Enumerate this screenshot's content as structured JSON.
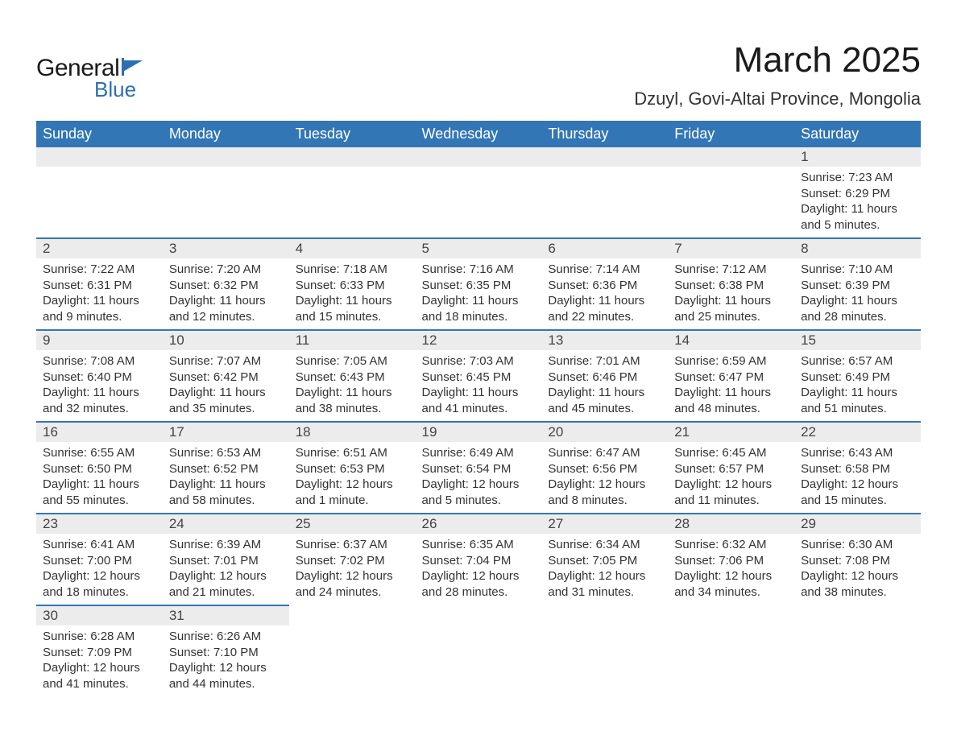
{
  "logo": {
    "text1": "General",
    "text2": "Blue",
    "flag_color": "#2d6fb0"
  },
  "title": "March 2025",
  "location": "Dzuyl, Govi-Altai Province, Mongolia",
  "colors": {
    "header_bg": "#3376b5",
    "header_text": "#ffffff",
    "daynum_bg": "#ececec",
    "row_border": "#3376b5",
    "text": "#333333",
    "title_text": "#1a1a1a"
  },
  "fonts": {
    "title_size_pt": 33,
    "location_size_pt": 17,
    "header_size_pt": 14,
    "daynum_size_pt": 13,
    "body_size_pt": 11
  },
  "weekdays": [
    "Sunday",
    "Monday",
    "Tuesday",
    "Wednesday",
    "Thursday",
    "Friday",
    "Saturday"
  ],
  "weeks": [
    [
      {
        "n": "",
        "sr": "",
        "ss": "",
        "dl": ""
      },
      {
        "n": "",
        "sr": "",
        "ss": "",
        "dl": ""
      },
      {
        "n": "",
        "sr": "",
        "ss": "",
        "dl": ""
      },
      {
        "n": "",
        "sr": "",
        "ss": "",
        "dl": ""
      },
      {
        "n": "",
        "sr": "",
        "ss": "",
        "dl": ""
      },
      {
        "n": "",
        "sr": "",
        "ss": "",
        "dl": ""
      },
      {
        "n": "1",
        "sr": "Sunrise: 7:23 AM",
        "ss": "Sunset: 6:29 PM",
        "dl": "Daylight: 11 hours and 5 minutes."
      }
    ],
    [
      {
        "n": "2",
        "sr": "Sunrise: 7:22 AM",
        "ss": "Sunset: 6:31 PM",
        "dl": "Daylight: 11 hours and 9 minutes."
      },
      {
        "n": "3",
        "sr": "Sunrise: 7:20 AM",
        "ss": "Sunset: 6:32 PM",
        "dl": "Daylight: 11 hours and 12 minutes."
      },
      {
        "n": "4",
        "sr": "Sunrise: 7:18 AM",
        "ss": "Sunset: 6:33 PM",
        "dl": "Daylight: 11 hours and 15 minutes."
      },
      {
        "n": "5",
        "sr": "Sunrise: 7:16 AM",
        "ss": "Sunset: 6:35 PM",
        "dl": "Daylight: 11 hours and 18 minutes."
      },
      {
        "n": "6",
        "sr": "Sunrise: 7:14 AM",
        "ss": "Sunset: 6:36 PM",
        "dl": "Daylight: 11 hours and 22 minutes."
      },
      {
        "n": "7",
        "sr": "Sunrise: 7:12 AM",
        "ss": "Sunset: 6:38 PM",
        "dl": "Daylight: 11 hours and 25 minutes."
      },
      {
        "n": "8",
        "sr": "Sunrise: 7:10 AM",
        "ss": "Sunset: 6:39 PM",
        "dl": "Daylight: 11 hours and 28 minutes."
      }
    ],
    [
      {
        "n": "9",
        "sr": "Sunrise: 7:08 AM",
        "ss": "Sunset: 6:40 PM",
        "dl": "Daylight: 11 hours and 32 minutes."
      },
      {
        "n": "10",
        "sr": "Sunrise: 7:07 AM",
        "ss": "Sunset: 6:42 PM",
        "dl": "Daylight: 11 hours and 35 minutes."
      },
      {
        "n": "11",
        "sr": "Sunrise: 7:05 AM",
        "ss": "Sunset: 6:43 PM",
        "dl": "Daylight: 11 hours and 38 minutes."
      },
      {
        "n": "12",
        "sr": "Sunrise: 7:03 AM",
        "ss": "Sunset: 6:45 PM",
        "dl": "Daylight: 11 hours and 41 minutes."
      },
      {
        "n": "13",
        "sr": "Sunrise: 7:01 AM",
        "ss": "Sunset: 6:46 PM",
        "dl": "Daylight: 11 hours and 45 minutes."
      },
      {
        "n": "14",
        "sr": "Sunrise: 6:59 AM",
        "ss": "Sunset: 6:47 PM",
        "dl": "Daylight: 11 hours and 48 minutes."
      },
      {
        "n": "15",
        "sr": "Sunrise: 6:57 AM",
        "ss": "Sunset: 6:49 PM",
        "dl": "Daylight: 11 hours and 51 minutes."
      }
    ],
    [
      {
        "n": "16",
        "sr": "Sunrise: 6:55 AM",
        "ss": "Sunset: 6:50 PM",
        "dl": "Daylight: 11 hours and 55 minutes."
      },
      {
        "n": "17",
        "sr": "Sunrise: 6:53 AM",
        "ss": "Sunset: 6:52 PM",
        "dl": "Daylight: 11 hours and 58 minutes."
      },
      {
        "n": "18",
        "sr": "Sunrise: 6:51 AM",
        "ss": "Sunset: 6:53 PM",
        "dl": "Daylight: 12 hours and 1 minute."
      },
      {
        "n": "19",
        "sr": "Sunrise: 6:49 AM",
        "ss": "Sunset: 6:54 PM",
        "dl": "Daylight: 12 hours and 5 minutes."
      },
      {
        "n": "20",
        "sr": "Sunrise: 6:47 AM",
        "ss": "Sunset: 6:56 PM",
        "dl": "Daylight: 12 hours and 8 minutes."
      },
      {
        "n": "21",
        "sr": "Sunrise: 6:45 AM",
        "ss": "Sunset: 6:57 PM",
        "dl": "Daylight: 12 hours and 11 minutes."
      },
      {
        "n": "22",
        "sr": "Sunrise: 6:43 AM",
        "ss": "Sunset: 6:58 PM",
        "dl": "Daylight: 12 hours and 15 minutes."
      }
    ],
    [
      {
        "n": "23",
        "sr": "Sunrise: 6:41 AM",
        "ss": "Sunset: 7:00 PM",
        "dl": "Daylight: 12 hours and 18 minutes."
      },
      {
        "n": "24",
        "sr": "Sunrise: 6:39 AM",
        "ss": "Sunset: 7:01 PM",
        "dl": "Daylight: 12 hours and 21 minutes."
      },
      {
        "n": "25",
        "sr": "Sunrise: 6:37 AM",
        "ss": "Sunset: 7:02 PM",
        "dl": "Daylight: 12 hours and 24 minutes."
      },
      {
        "n": "26",
        "sr": "Sunrise: 6:35 AM",
        "ss": "Sunset: 7:04 PM",
        "dl": "Daylight: 12 hours and 28 minutes."
      },
      {
        "n": "27",
        "sr": "Sunrise: 6:34 AM",
        "ss": "Sunset: 7:05 PM",
        "dl": "Daylight: 12 hours and 31 minutes."
      },
      {
        "n": "28",
        "sr": "Sunrise: 6:32 AM",
        "ss": "Sunset: 7:06 PM",
        "dl": "Daylight: 12 hours and 34 minutes."
      },
      {
        "n": "29",
        "sr": "Sunrise: 6:30 AM",
        "ss": "Sunset: 7:08 PM",
        "dl": "Daylight: 12 hours and 38 minutes."
      }
    ],
    [
      {
        "n": "30",
        "sr": "Sunrise: 6:28 AM",
        "ss": "Sunset: 7:09 PM",
        "dl": "Daylight: 12 hours and 41 minutes."
      },
      {
        "n": "31",
        "sr": "Sunrise: 6:26 AM",
        "ss": "Sunset: 7:10 PM",
        "dl": "Daylight: 12 hours and 44 minutes."
      },
      {
        "n": "",
        "sr": "",
        "ss": "",
        "dl": ""
      },
      {
        "n": "",
        "sr": "",
        "ss": "",
        "dl": ""
      },
      {
        "n": "",
        "sr": "",
        "ss": "",
        "dl": ""
      },
      {
        "n": "",
        "sr": "",
        "ss": "",
        "dl": ""
      },
      {
        "n": "",
        "sr": "",
        "ss": "",
        "dl": ""
      }
    ]
  ]
}
